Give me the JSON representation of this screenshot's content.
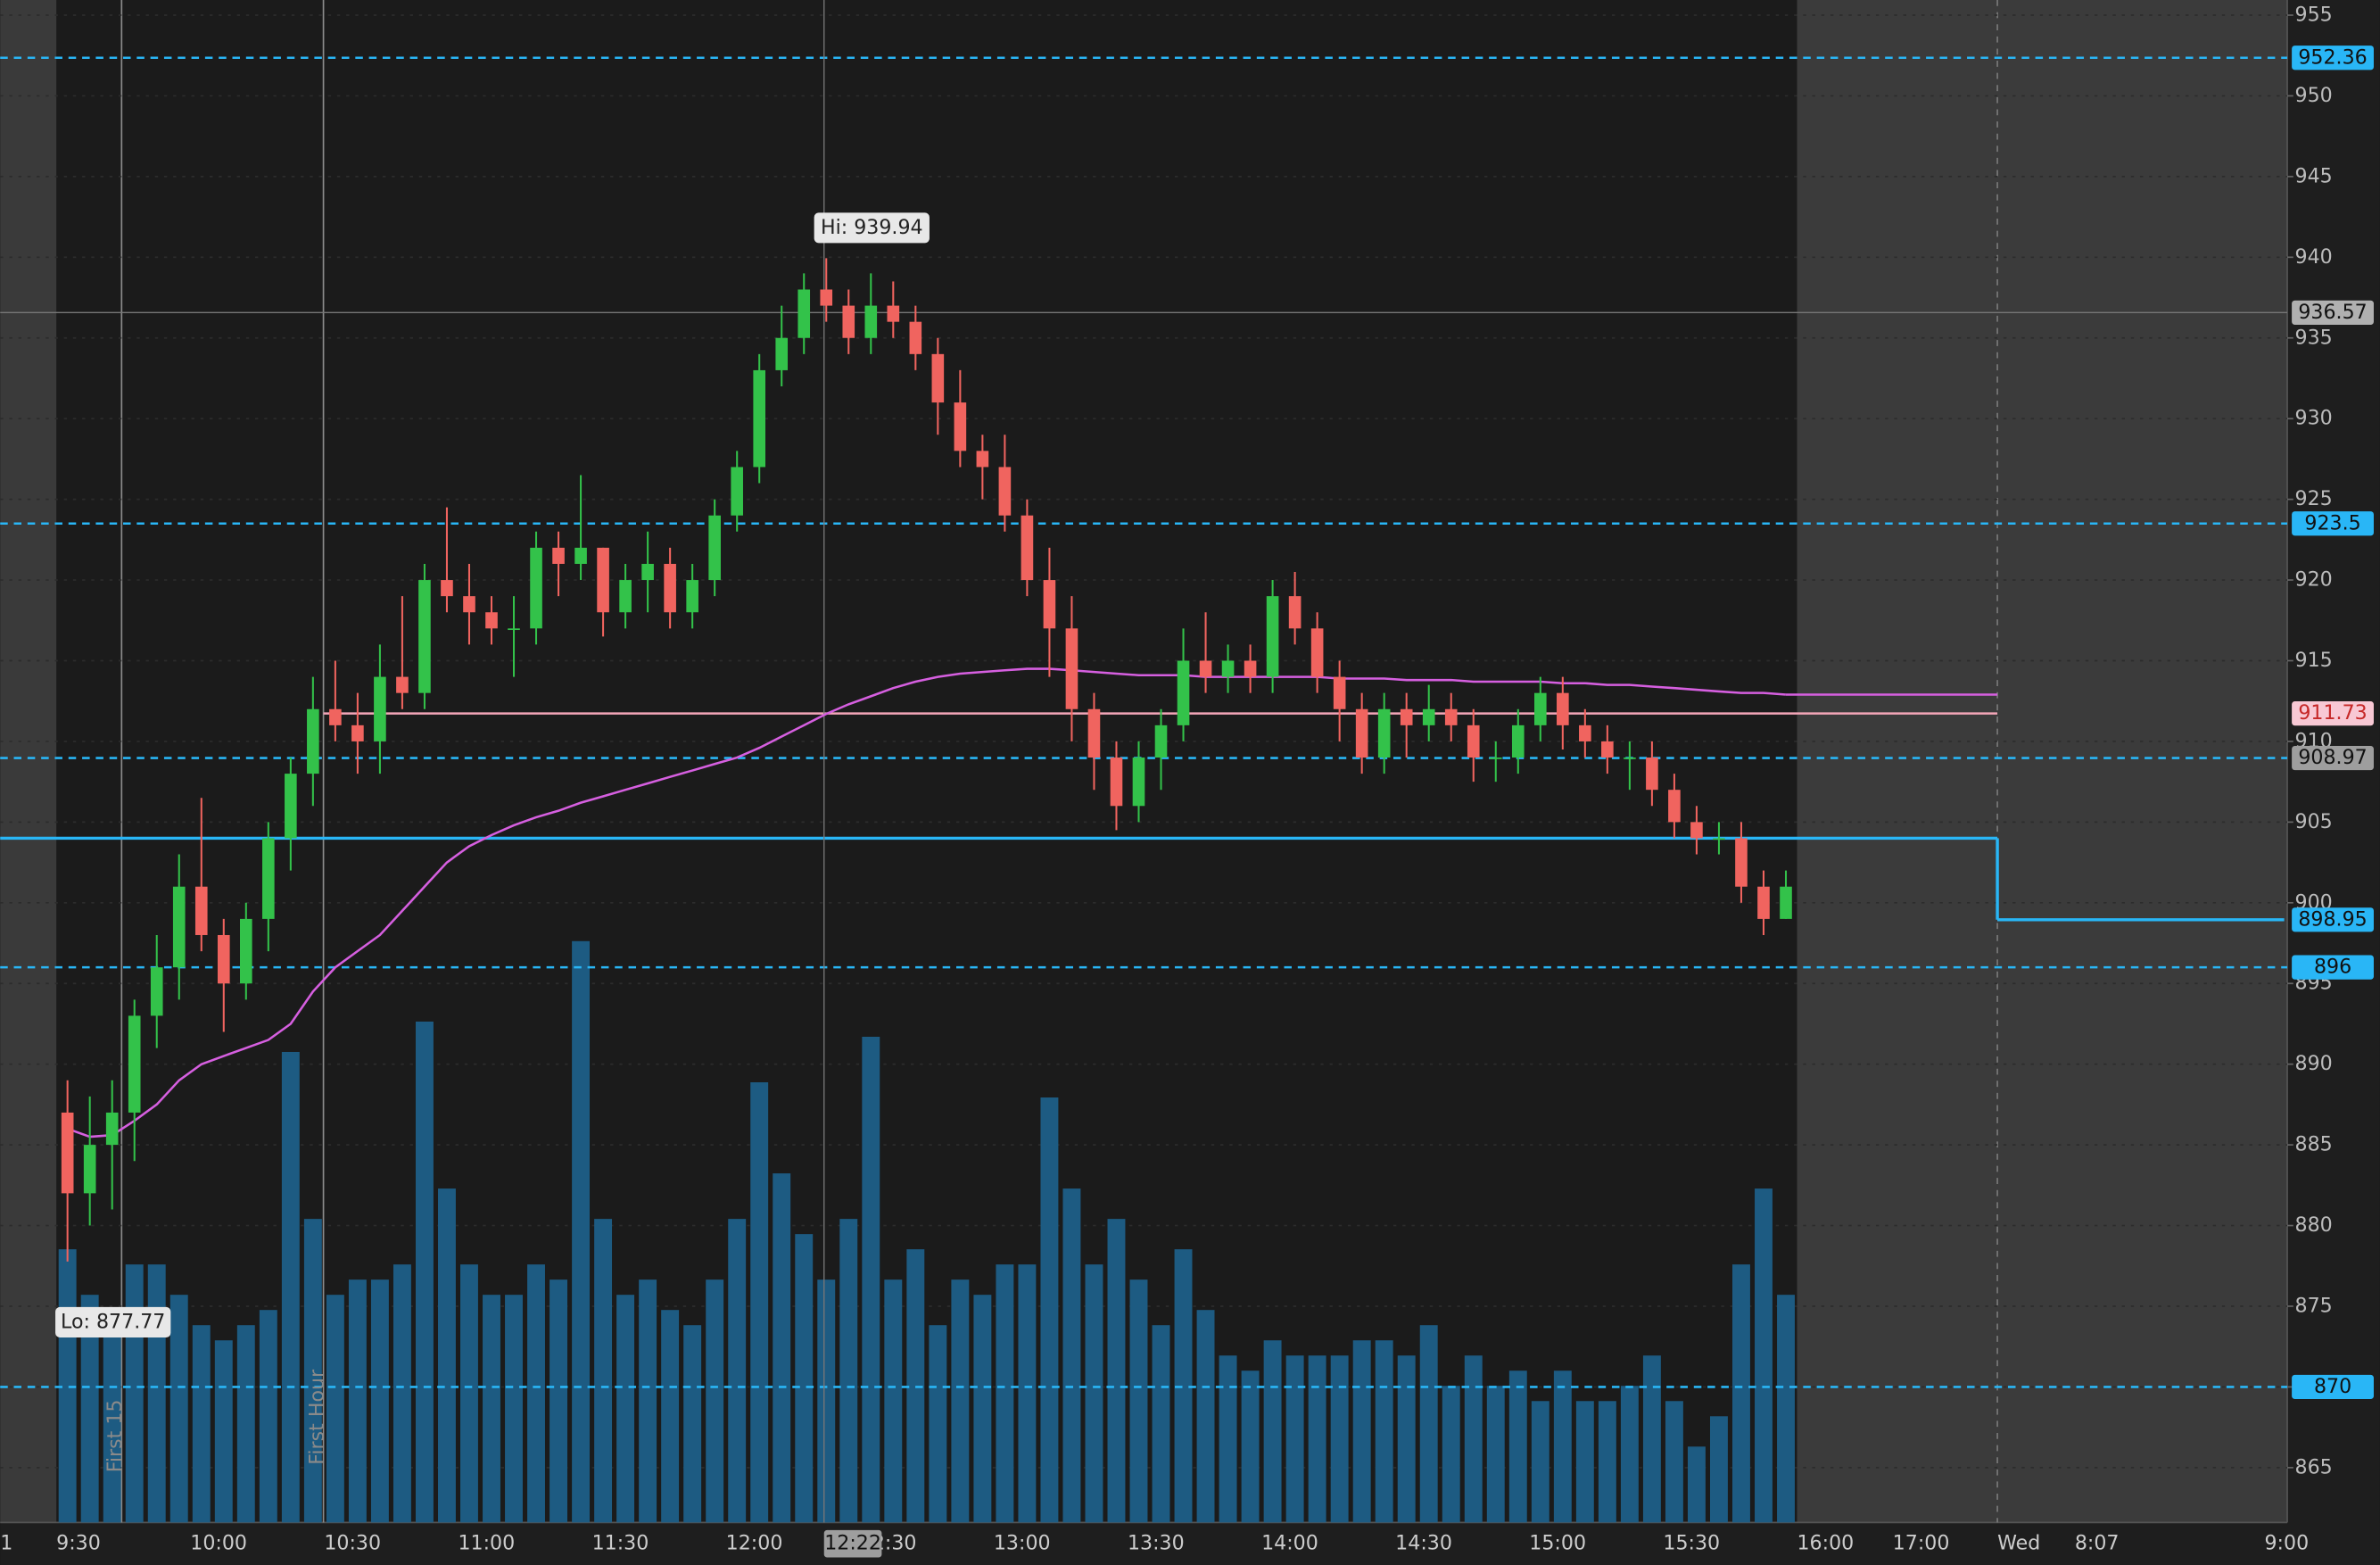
{
  "chart_data": {
    "type": "candlestick",
    "x": [
      "9:30",
      "9:35",
      "9:40",
      "9:45",
      "9:50",
      "9:55",
      "10:00",
      "10:05",
      "10:10",
      "10:15",
      "10:20",
      "10:25",
      "10:30",
      "10:35",
      "10:40",
      "10:45",
      "10:50",
      "10:55",
      "11:00",
      "11:05",
      "11:10",
      "11:15",
      "11:20",
      "11:25",
      "11:30",
      "11:35",
      "11:40",
      "11:45",
      "11:50",
      "11:55",
      "12:00",
      "12:05",
      "12:10",
      "12:15",
      "12:20",
      "12:25",
      "12:30",
      "12:35",
      "12:40",
      "12:45",
      "12:50",
      "12:55",
      "13:00",
      "13:05",
      "13:10",
      "13:15",
      "13:20",
      "13:25",
      "13:30",
      "13:35",
      "13:40",
      "13:45",
      "13:50",
      "13:55",
      "14:00",
      "14:05",
      "14:10",
      "14:15",
      "14:20",
      "14:25",
      "14:30",
      "14:35",
      "14:40",
      "14:45",
      "14:50",
      "14:55",
      "15:00",
      "15:05",
      "15:10",
      "15:15",
      "15:20",
      "15:25",
      "15:30",
      "15:35",
      "15:40",
      "15:45",
      "15:50",
      "15:55"
    ],
    "open": [
      887,
      882,
      885,
      887,
      893,
      896,
      901,
      898,
      895,
      899,
      904,
      908,
      912,
      911,
      910,
      914,
      913,
      920,
      919,
      918,
      917,
      917,
      922,
      921,
      922,
      918,
      920,
      921,
      918,
      920,
      924,
      927,
      933,
      935,
      938,
      937,
      935,
      937,
      936,
      934,
      931,
      928,
      927,
      924,
      920,
      917,
      912,
      909,
      906,
      909,
      911,
      915,
      914,
      915,
      914,
      919,
      917,
      914,
      912,
      909,
      912,
      911,
      912,
      911,
      909,
      909,
      911,
      913,
      911,
      910,
      909,
      909,
      907,
      905,
      904,
      904,
      901,
      899
    ],
    "high": [
      889,
      888,
      889,
      894,
      898,
      903,
      906.5,
      899,
      900,
      905,
      909,
      914,
      915,
      913,
      916,
      919,
      921,
      924.5,
      921,
      919,
      919,
      923,
      923,
      926.5,
      922,
      921,
      923,
      922,
      921,
      925,
      928,
      934,
      937,
      939,
      939.94,
      938,
      939,
      938.5,
      937,
      935,
      933,
      929,
      929,
      925,
      922,
      919,
      913,
      910,
      910,
      912,
      917,
      918,
      916,
      916,
      920,
      920.5,
      918,
      915,
      913,
      913,
      913,
      913.5,
      913,
      912,
      910,
      912,
      914,
      914,
      912,
      911,
      910,
      910,
      908,
      906,
      905,
      905,
      902,
      902
    ],
    "low": [
      877.77,
      880,
      881,
      884,
      891,
      894,
      897,
      892,
      894,
      897,
      902,
      906,
      910,
      908,
      908,
      912,
      912,
      918,
      916,
      916,
      914,
      916,
      919,
      920,
      916.5,
      917,
      918,
      917,
      917,
      919,
      923,
      926,
      932,
      934,
      936,
      934,
      934,
      935,
      933,
      929,
      927,
      925,
      923,
      919,
      914,
      910,
      907,
      904.5,
      905,
      907,
      910,
      913,
      913,
      913,
      913,
      916,
      913,
      910,
      908,
      908,
      909,
      910,
      910,
      907.5,
      907.5,
      908,
      910,
      909.5,
      909,
      908,
      907,
      906,
      904,
      903,
      903,
      900,
      898,
      899
    ],
    "close": [
      882,
      885,
      887,
      893,
      896,
      901,
      898,
      895,
      899,
      904,
      908,
      912,
      911,
      910,
      914,
      913,
      920,
      919,
      918,
      917,
      917,
      922,
      921,
      922,
      918,
      920,
      921,
      918,
      920,
      924,
      927,
      933,
      935,
      938,
      937,
      935,
      937,
      936,
      934,
      931,
      928,
      927,
      924,
      920,
      917,
      912,
      909,
      906,
      909,
      911,
      915,
      914,
      915,
      914,
      919,
      917,
      914,
      912,
      909,
      912,
      911,
      912,
      911,
      909,
      909,
      911,
      913,
      911,
      910,
      909,
      909,
      907,
      905,
      904,
      904,
      901,
      899,
      901
    ],
    "volume": [
      180,
      150,
      130,
      170,
      170,
      150,
      130,
      120,
      130,
      140,
      310,
      200,
      150,
      160,
      160,
      170,
      330,
      220,
      170,
      150,
      150,
      170,
      160,
      383,
      200,
      150,
      160,
      140,
      130,
      160,
      200,
      290,
      230,
      190,
      160,
      200,
      320,
      160,
      180,
      130,
      160,
      150,
      170,
      170,
      280,
      220,
      170,
      200,
      160,
      130,
      180,
      140,
      110,
      100,
      120,
      110,
      110,
      110,
      120,
      120,
      110,
      130,
      90,
      110,
      90,
      100,
      80,
      100,
      80,
      80,
      90,
      110,
      80,
      50,
      70,
      170,
      220,
      150
    ],
    "vwap": [
      886,
      885.5,
      885.6,
      886.5,
      887.5,
      889,
      890,
      890.5,
      891,
      891.5,
      892.5,
      894.5,
      896,
      897,
      898,
      899.5,
      901,
      902.5,
      903.5,
      904.2,
      904.8,
      905.3,
      905.7,
      906.2,
      906.6,
      907,
      907.4,
      907.8,
      908.2,
      908.6,
      909,
      909.6,
      910.3,
      911,
      911.7,
      912.3,
      912.8,
      913.3,
      913.7,
      914,
      914.2,
      914.3,
      914.4,
      914.5,
      914.5,
      914.4,
      914.3,
      914.2,
      914.1,
      914.1,
      914.1,
      914,
      914,
      914,
      914,
      914,
      914,
      913.9,
      913.9,
      913.9,
      913.8,
      913.8,
      913.8,
      913.7,
      913.7,
      913.7,
      913.7,
      913.6,
      913.6,
      913.5,
      913.5,
      913.4,
      913.3,
      913.2,
      913.1,
      913,
      913,
      912.9
    ],
    "up_color": "#33c24a",
    "down_color": "#f0645f",
    "volume_color": "#1d5b82",
    "vwap_color": "#d65fe0",
    "ylim": [
      861.6,
      955.94
    ],
    "yticks": [
      865,
      870,
      875,
      880,
      885,
      890,
      895,
      900,
      905,
      910,
      915,
      920,
      925,
      930,
      935,
      940,
      945,
      950,
      955
    ],
    "grid": true,
    "xticks": [
      "9:30",
      "10:00",
      "10:30",
      "11:00",
      "11:30",
      "12:00",
      "12:30",
      "13:00",
      "13:30",
      "14:00",
      "14:30",
      "15:00",
      "15:30",
      "16:00",
      "17:00",
      "Wed",
      "8:07",
      "9:00"
    ],
    "left_edge_label": "1",
    "levels": [
      {
        "value": 952.36,
        "color": "#29b6f6",
        "label_color": "#29b6f6"
      },
      {
        "value": 923.5,
        "color": "#29b6f6",
        "label_color": "#29b6f6"
      },
      {
        "value": 908.97,
        "color": "#29b6f6",
        "label_color": "#9e9e9e"
      },
      {
        "value": 896,
        "color": "#29b6f6",
        "label_color": "#29b6f6"
      },
      {
        "value": 870,
        "color": "#29b6f6",
        "label_color": "#29b6f6"
      }
    ],
    "pink_line": {
      "value": 911.73,
      "color": "#f4a6b8"
    },
    "step_line": {
      "values": [
        904,
        898.95
      ],
      "color": "#29b6f6"
    },
    "crosshair": {
      "x": "12:22",
      "y": 936.57
    },
    "hi_label": "Hi: 939.94",
    "lo_label": "Lo: 877.77",
    "study_labels": [
      "First 15",
      "First Hour"
    ]
  }
}
